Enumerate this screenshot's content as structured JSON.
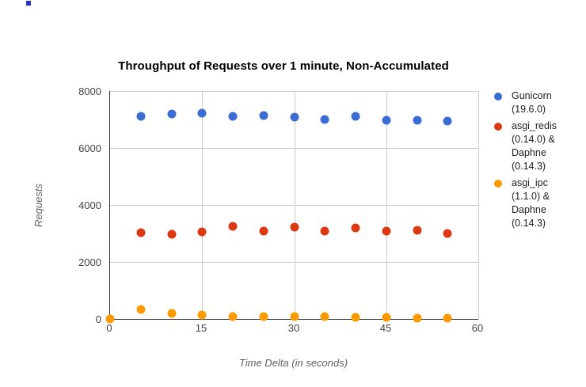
{
  "decorations": {
    "stray_mark_color": "#2b2fd6"
  },
  "chart_data": {
    "type": "scatter",
    "title": "Throughput of Requests over 1 minute, Non-Accumulated",
    "xlabel": "Time Delta (in seconds)",
    "ylabel": "Requests",
    "xlim": [
      0,
      60
    ],
    "ylim": [
      0,
      8000
    ],
    "x_ticks": [
      0,
      15,
      30,
      45,
      60
    ],
    "y_ticks": [
      0,
      2000,
      4000,
      6000,
      8000
    ],
    "grid": true,
    "legend_position": "right",
    "series": [
      {
        "name": "Gunicorn (19.6.0)",
        "legend_lines": [
          "Gunicorn",
          "(19.6.0)"
        ],
        "color": "#3b6cd3",
        "points": [
          [
            5,
            7110
          ],
          [
            10,
            7190
          ],
          [
            15,
            7220
          ],
          [
            20,
            7110
          ],
          [
            25,
            7140
          ],
          [
            30,
            7090
          ],
          [
            35,
            7000
          ],
          [
            40,
            7110
          ],
          [
            45,
            6980
          ],
          [
            50,
            6970
          ],
          [
            55,
            6950
          ]
        ]
      },
      {
        "name": "asgi_redis (0.14.0) & Daphne (0.14.3)",
        "legend_lines": [
          "asgi_redis",
          "(0.14.0) &",
          "Daphne",
          "(0.14.3)"
        ],
        "color": "#dc3912",
        "points": [
          [
            5,
            3020
          ],
          [
            10,
            2980
          ],
          [
            15,
            3060
          ],
          [
            20,
            3260
          ],
          [
            25,
            3070
          ],
          [
            30,
            3220
          ],
          [
            35,
            3070
          ],
          [
            40,
            3190
          ],
          [
            45,
            3070
          ],
          [
            50,
            3110
          ],
          [
            55,
            3000
          ]
        ]
      },
      {
        "name": "asgi_ipc (1.1.0) & Daphne (0.14.3)",
        "legend_lines": [
          "asgi_ipc",
          "(1.1.0) &",
          "Daphne",
          "(0.14.3)"
        ],
        "color": "#ff9900",
        "points": [
          [
            0,
            0
          ],
          [
            5,
            340
          ],
          [
            10,
            200
          ],
          [
            15,
            130
          ],
          [
            20,
            95
          ],
          [
            25,
            75
          ],
          [
            30,
            85
          ],
          [
            35,
            85
          ],
          [
            40,
            65
          ],
          [
            45,
            65
          ],
          [
            50,
            40
          ],
          [
            55,
            25
          ]
        ]
      }
    ]
  }
}
